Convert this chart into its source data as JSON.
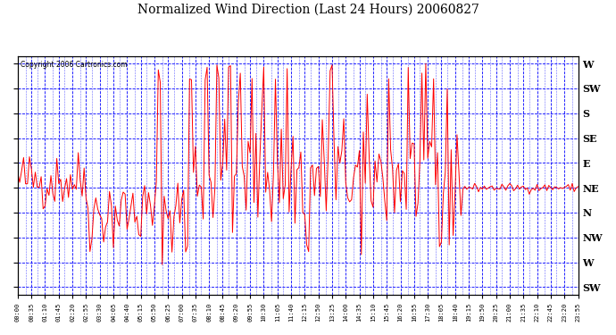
{
  "title": "Normalized Wind Direction (Last 24 Hours) 20060827",
  "copyright": "Copyright 2006 Cartronics.com",
  "background_color": "#ffffff",
  "line_color": "#ff0000",
  "grid_color": "#0000ff",
  "y_labels_right": [
    "W",
    "SW",
    "S",
    "SE",
    "E",
    "NE",
    "N",
    "NW",
    "W",
    "SW"
  ],
  "y_tick_vals": [
    9,
    8,
    7,
    6,
    5,
    4,
    3,
    2,
    1,
    0
  ],
  "x_tick_labels": [
    "00:00",
    "00:35",
    "01:10",
    "01:45",
    "02:20",
    "02:55",
    "03:30",
    "04:05",
    "04:40",
    "05:15",
    "05:50",
    "06:25",
    "07:00",
    "07:35",
    "08:10",
    "08:45",
    "09:20",
    "09:55",
    "10:30",
    "11:05",
    "11:40",
    "12:15",
    "12:50",
    "13:25",
    "14:00",
    "14:35",
    "15:10",
    "15:45",
    "16:20",
    "16:55",
    "17:30",
    "18:05",
    "18:40",
    "19:15",
    "19:50",
    "20:25",
    "21:00",
    "21:35",
    "22:10",
    "22:45",
    "23:20",
    "23:55"
  ],
  "seed": 42,
  "n_points": 288,
  "figsize": [
    6.9,
    3.75
  ],
  "dpi": 100
}
